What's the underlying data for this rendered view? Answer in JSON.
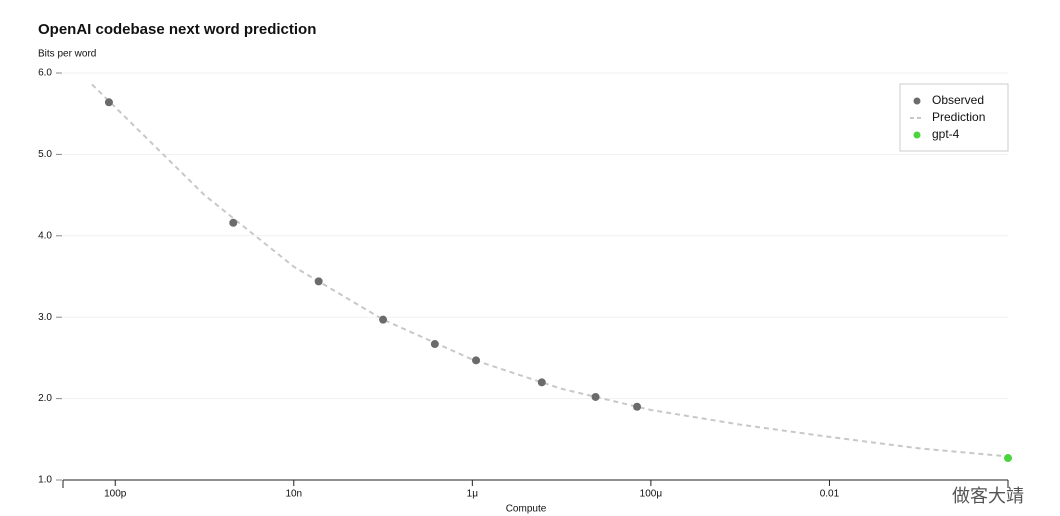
{
  "chart_data": {
    "type": "scatter",
    "title": "OpenAI codebase next word prediction",
    "y_label": "Bits per word",
    "x_label": "Compute",
    "x_scale": "log",
    "xlim": [
      2.6e-11,
      1
    ],
    "xticks": [
      {
        "value": 1e-10,
        "label": "100p"
      },
      {
        "value": 1e-08,
        "label": "10n"
      },
      {
        "value": 1e-06,
        "label": "1μ"
      },
      {
        "value": 0.0001,
        "label": "100μ"
      },
      0.01
    ],
    "ylim": [
      1,
      6
    ],
    "yticks": [
      {
        "value": 1,
        "label": "1.0"
      },
      {
        "value": 2,
        "label": "2.0"
      },
      {
        "value": 3,
        "label": "3.0"
      },
      {
        "value": 4,
        "label": "4.0"
      },
      {
        "value": 5,
        "label": "5.0"
      },
      {
        "value": 6,
        "label": "6.0"
      }
    ],
    "grid": true,
    "legend": "upper right",
    "series": [
      {
        "name": "Observed",
        "type": "scatter",
        "color": "#6b6b6b",
        "x": [
          8.5e-11,
          2.1e-09,
          1.9e-08,
          1e-07,
          3.8e-07,
          1.1e-06,
          6e-06,
          2.4e-05,
          7e-05
        ],
        "values": [
          5.64,
          4.16,
          3.44,
          2.97,
          2.67,
          2.47,
          2.2,
          2.02,
          1.9
        ]
      },
      {
        "name": "Prediction",
        "type": "line",
        "color": "#c8c8c8",
        "x": [
          5.5e-11,
          1e-10,
          1e-09,
          1e-08,
          1e-07,
          1e-06,
          1e-05,
          0.0001,
          0.001,
          0.01,
          0.1,
          1
        ],
        "values": [
          5.86,
          5.58,
          4.5,
          3.62,
          2.97,
          2.48,
          2.12,
          1.86,
          1.68,
          1.53,
          1.39,
          1.29
        ]
      },
      {
        "name": "gpt-4",
        "type": "scatter",
        "color": "#4cd43f",
        "x": [
          1
        ],
        "values": [
          1.27
        ]
      }
    ]
  },
  "watermark": "做客大靖"
}
